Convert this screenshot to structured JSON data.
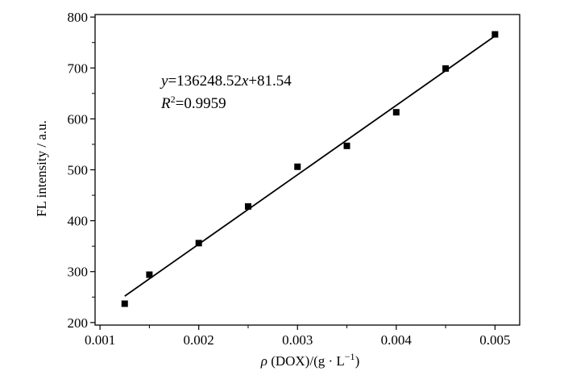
{
  "chart_data": {
    "type": "scatter",
    "xlabel": "ρ (DOX)/(g · L⁻¹)",
    "ylabel": "FL intensity / a.u.",
    "xlim": [
      0.00095,
      0.00525
    ],
    "ylim": [
      195,
      805
    ],
    "x_ticks": [
      0.001,
      0.002,
      0.003,
      0.004,
      0.005
    ],
    "x_tick_labels": [
      "0.001",
      "0.002",
      "0.003",
      "0.004",
      "0.005"
    ],
    "y_ticks": [
      200,
      300,
      400,
      500,
      600,
      700,
      800
    ],
    "y_tick_labels": [
      "200",
      "300",
      "400",
      "500",
      "600",
      "700",
      "800"
    ],
    "grid": false,
    "series": [
      {
        "marker": "square",
        "color": "#000000",
        "points": [
          {
            "x": 0.00125,
            "y": 237
          },
          {
            "x": 0.0015,
            "y": 294
          },
          {
            "x": 0.002,
            "y": 356
          },
          {
            "x": 0.0025,
            "y": 428
          },
          {
            "x": 0.003,
            "y": 506
          },
          {
            "x": 0.0035,
            "y": 547
          },
          {
            "x": 0.004,
            "y": 613
          },
          {
            "x": 0.0045,
            "y": 699
          },
          {
            "x": 0.005,
            "y": 766
          }
        ]
      }
    ],
    "fit_line": {
      "slope": 136248.52,
      "intercept": 81.54,
      "x_range": [
        0.00125,
        0.005
      ],
      "color": "#000000"
    },
    "annotation": {
      "equation": "y=136248.52x+81.54",
      "r_squared": "R²=0.9959"
    }
  }
}
